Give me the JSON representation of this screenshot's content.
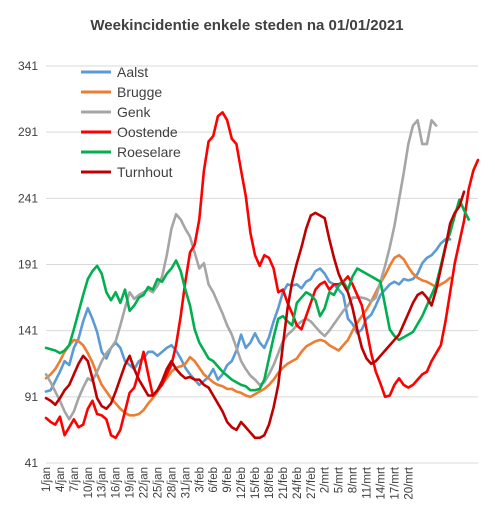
{
  "chart_data": {
    "type": "line",
    "title": "Weekincidentie enkele steden na 01/01/2021",
    "xlabel": "",
    "ylabel": "",
    "ylim": [
      41,
      341
    ],
    "yticks": [
      41,
      91,
      141,
      191,
      241,
      291,
      341
    ],
    "grid": "horizontal",
    "legend_position": "top-left",
    "x_tick_labels": [
      "1/jan",
      "4/jan",
      "7/jan",
      "10/jan",
      "13/jan",
      "16/jan",
      "19/jan",
      "22/jan",
      "25/jan",
      "28/jan",
      "31/jan",
      "3/feb",
      "6/feb",
      "9/feb",
      "12/feb",
      "15/feb",
      "18/feb",
      "21/feb",
      "24/feb",
      "27/feb",
      "2/mrt",
      "5/mrt",
      "8/mrt",
      "11/mrt",
      "14/mrt",
      "17/mrt",
      "20/mrt"
    ],
    "x_tick_step_days": 3,
    "series": [
      {
        "name": "Aalst",
        "color": "#5b9bd5",
        "values": [
          95,
          96,
          103,
          110,
          118,
          115,
          128,
          135,
          148,
          158,
          150,
          140,
          125,
          120,
          128,
          132,
          128,
          118,
          115,
          112,
          118,
          120,
          125,
          125,
          122,
          125,
          128,
          130,
          126,
          120,
          113,
          108,
          104,
          100,
          103,
          106,
          112,
          104,
          108,
          115,
          118,
          126,
          138,
          128,
          132,
          139,
          132,
          128,
          136,
          148,
          158,
          170,
          176,
          175,
          176,
          173,
          178,
          180,
          186,
          188,
          184,
          178,
          176,
          172,
          168,
          150,
          146,
          139,
          142,
          150,
          153,
          160,
          168,
          172,
          176,
          178,
          176,
          180,
          179,
          180,
          184,
          192,
          196,
          198,
          202,
          207,
          210,
          210
        ]
      },
      {
        "name": "Brugge",
        "color": "#ed7d31",
        "values": [
          105,
          108,
          112,
          118,
          125,
          130,
          134,
          133,
          130,
          124,
          117,
          108,
          100,
          95,
          90,
          86,
          82,
          79,
          77,
          77,
          78,
          81,
          86,
          90,
          95,
          101,
          105,
          110,
          113,
          114,
          116,
          121,
          118,
          113,
          108,
          105,
          102,
          100,
          99,
          97,
          97,
          95,
          94,
          92,
          91,
          93,
          95,
          97,
          100,
          104,
          109,
          113,
          116,
          118,
          120,
          125,
          129,
          131,
          133,
          134,
          133,
          130,
          128,
          126,
          130,
          134,
          141,
          147,
          152,
          157,
          163,
          170,
          177,
          183,
          190,
          196,
          198,
          195,
          189,
          184,
          181,
          179,
          178,
          176,
          174,
          176,
          178,
          181
        ]
      },
      {
        "name": "Genk",
        "color": "#a5a5a5",
        "values": [
          108,
          102,
          95,
          88,
          80,
          74,
          80,
          90,
          98,
          105,
          103,
          110,
          118,
          124,
          128,
          133,
          145,
          158,
          170,
          165,
          168,
          170,
          172,
          170,
          175,
          182,
          198,
          218,
          229,
          225,
          218,
          212,
          200,
          188,
          192,
          176,
          170,
          162,
          154,
          145,
          138,
          128,
          118,
          112,
          107,
          104,
          100,
          102,
          108,
          115,
          124,
          133,
          138,
          141,
          145,
          148,
          150,
          148,
          144,
          140,
          137,
          141,
          146,
          151,
          156,
          160,
          166,
          166,
          166,
          165,
          163,
          166,
          178,
          190,
          204,
          220,
          240,
          260,
          282,
          296,
          300,
          282,
          282,
          300,
          296
        ]
      },
      {
        "name": "Oostende",
        "color": "#ff0000",
        "values": [
          75,
          72,
          70,
          76,
          62,
          68,
          74,
          68,
          70,
          82,
          88,
          78,
          77,
          74,
          62,
          60,
          66,
          80,
          94,
          98,
          110,
          125,
          108,
          92,
          96,
          100,
          108,
          115,
          130,
          152,
          178,
          200,
          206,
          225,
          262,
          284,
          288,
          303,
          306,
          300,
          286,
          282,
          262,
          243,
          215,
          198,
          190,
          198,
          196,
          188,
          170,
          172,
          162,
          154,
          145,
          142,
          152,
          162,
          172,
          176,
          178,
          172,
          176,
          176,
          178,
          182,
          176,
          168,
          160,
          142,
          124,
          110,
          101,
          91,
          92,
          100,
          105,
          100,
          98,
          100,
          104,
          108,
          110,
          118,
          124,
          130,
          148,
          170,
          192,
          208,
          224,
          248,
          262,
          270
        ]
      },
      {
        "name": "Roeselare",
        "color": "#00b050",
        "values": [
          128,
          127,
          126,
          124,
          126,
          130,
          142,
          155,
          168,
          180,
          186,
          190,
          184,
          170,
          164,
          170,
          162,
          172,
          156,
          160,
          166,
          168,
          174,
          172,
          180,
          178,
          184,
          188,
          194,
          186,
          172,
          160,
          142,
          132,
          126,
          120,
          118,
          114,
          110,
          107,
          104,
          102,
          100,
          99,
          96,
          96,
          97,
          104,
          120,
          136,
          150,
          152,
          148,
          145,
          162,
          166,
          170,
          168,
          164,
          152,
          158,
          170,
          168,
          175,
          178,
          172,
          182,
          188,
          186,
          184,
          182,
          180,
          178,
          160,
          142,
          137,
          134,
          136,
          138,
          140,
          146,
          152,
          160,
          168,
          176,
          190,
          205,
          215,
          228,
          240,
          232,
          225
        ]
      },
      {
        "name": "Turnhout",
        "color": "#c00000",
        "values": [
          90,
          88,
          85,
          90,
          96,
          100,
          108,
          116,
          122,
          118,
          105,
          90,
          84,
          82,
          86,
          95,
          105,
          115,
          122,
          112,
          104,
          98,
          92,
          92,
          96,
          103,
          112,
          118,
          112,
          108,
          105,
          106,
          104,
          104,
          100,
          98,
          92,
          86,
          80,
          72,
          68,
          66,
          72,
          68,
          64,
          60,
          60,
          62,
          70,
          83,
          100,
          130,
          158,
          178,
          192,
          204,
          218,
          228,
          230,
          228,
          226,
          210,
          196,
          184,
          176,
          170,
          158,
          142,
          128,
          120,
          116,
          118,
          122,
          126,
          130,
          134,
          138,
          146,
          154,
          162,
          168,
          170,
          166,
          160,
          172,
          188,
          204,
          222,
          230,
          235,
          246
        ]
      }
    ],
    "legend_order": [
      "Aalst",
      "Brugge",
      "Genk",
      "Oostende",
      "Roeselare",
      "Turnhout"
    ]
  }
}
